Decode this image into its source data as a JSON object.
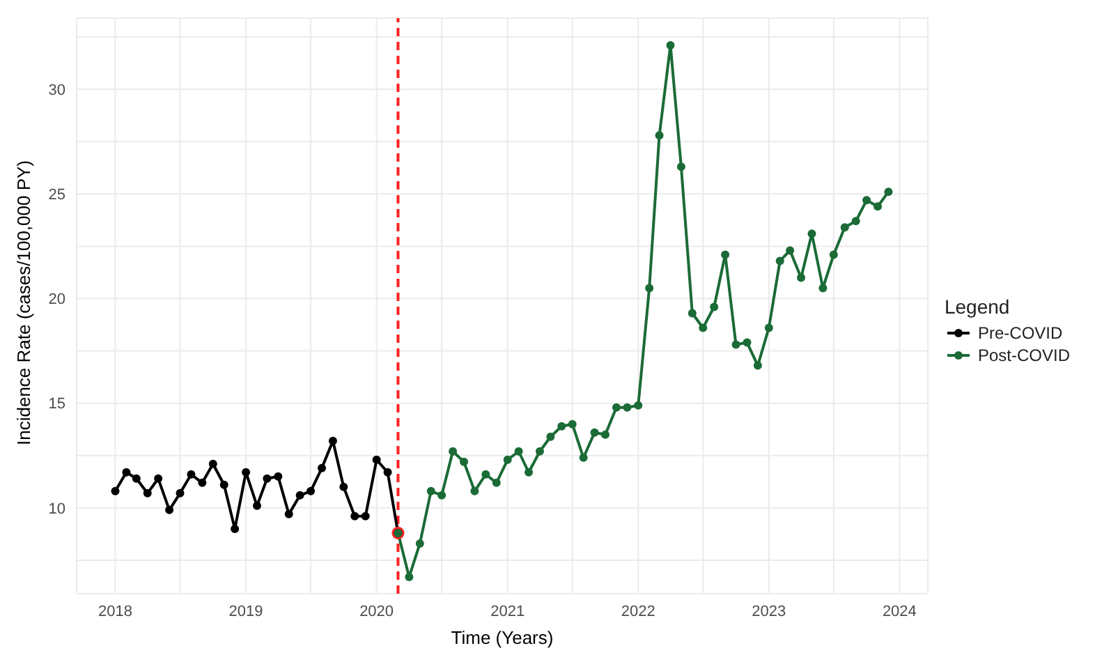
{
  "chart_data": {
    "type": "line",
    "xlabel": "Time (Years)",
    "ylabel": "Incidence Rate (cases/100,000 PY)",
    "legend_title": "Legend",
    "legend": "right",
    "grid": true,
    "marker": "circle",
    "line_style": "solid",
    "xlim": [
      "2017-09-15",
      "2024-03-20"
    ],
    "xticks": [
      {
        "value": "2018",
        "label": "2018"
      },
      {
        "value": "2018-07",
        "label": null
      },
      {
        "value": "2019",
        "label": "2019"
      },
      {
        "value": "2019-07",
        "label": null
      },
      {
        "value": "2020",
        "label": "2020"
      },
      {
        "value": "2020-07",
        "label": null
      },
      {
        "value": "2021",
        "label": "2021"
      },
      {
        "value": "2021-07",
        "label": null
      },
      {
        "value": "2022",
        "label": "2022"
      },
      {
        "value": "2022-07",
        "label": null
      },
      {
        "value": "2023",
        "label": "2023"
      },
      {
        "value": "2023-07",
        "label": null
      },
      {
        "value": "2024",
        "label": "2024"
      }
    ],
    "ylim": [
      5.9,
      33.4
    ],
    "yticks": [
      {
        "value": 7.5,
        "label": null
      },
      10,
      {
        "value": 12.5,
        "label": null
      },
      15,
      {
        "value": 17.5,
        "label": null
      },
      20,
      {
        "value": 22.5,
        "label": null
      },
      25,
      {
        "value": 27.5,
        "label": null
      },
      30,
      {
        "value": 32.5,
        "label": null
      }
    ],
    "ref_lines": [
      {
        "axis": "x",
        "value": "2020-03",
        "color": "#ff2020",
        "line_style": "dashed"
      }
    ],
    "series": [
      {
        "name": "Pre-COVID",
        "color": "#000000",
        "x": [
          "2018-01",
          "2018-02",
          "2018-03",
          "2018-04",
          "2018-05",
          "2018-06",
          "2018-07",
          "2018-08",
          "2018-09",
          "2018-10",
          "2018-11",
          "2018-12",
          "2019-01",
          "2019-02",
          "2019-03",
          "2019-04",
          "2019-05",
          "2019-06",
          "2019-07",
          "2019-08",
          "2019-09",
          "2019-10",
          "2019-11",
          "2019-12",
          "2020-01",
          "2020-02",
          "2020-03"
        ],
        "values": [
          10.8,
          11.7,
          11.4,
          10.7,
          11.4,
          9.9,
          10.7,
          11.6,
          11.2,
          12.1,
          11.1,
          9.0,
          11.7,
          10.1,
          11.4,
          11.5,
          9.7,
          10.6,
          10.8,
          11.9,
          13.2,
          11.0,
          9.6,
          9.6,
          12.3,
          11.7,
          8.8
        ]
      },
      {
        "name": "Post-COVID",
        "color": "#1b6b36",
        "x": [
          "2020-03",
          "2020-04",
          "2020-05",
          "2020-06",
          "2020-07",
          "2020-08",
          "2020-09",
          "2020-10",
          "2020-11",
          "2020-12",
          "2021-01",
          "2021-02",
          "2021-03",
          "2021-04",
          "2021-05",
          "2021-06",
          "2021-07",
          "2021-08",
          "2021-09",
          "2021-10",
          "2021-11",
          "2021-12",
          "2022-01",
          "2022-02",
          "2022-03",
          "2022-04",
          "2022-05",
          "2022-06",
          "2022-07",
          "2022-08",
          "2022-09",
          "2022-10",
          "2022-11",
          "2022-12",
          "2023-01",
          "2023-02",
          "2023-03",
          "2023-04",
          "2023-05",
          "2023-06",
          "2023-07",
          "2023-08",
          "2023-09",
          "2023-10",
          "2023-11",
          "2023-12"
        ],
        "values": [
          8.8,
          6.7,
          8.3,
          10.8,
          10.6,
          12.7,
          12.2,
          10.8,
          11.6,
          11.2,
          12.3,
          12.7,
          11.7,
          12.7,
          13.4,
          13.9,
          14.0,
          12.4,
          13.6,
          13.5,
          14.8,
          14.8,
          14.9,
          20.5,
          27.8,
          32.1,
          26.3,
          19.3,
          18.6,
          19.6,
          22.1,
          17.8,
          17.9,
          16.8,
          18.6,
          21.8,
          22.3,
          21.0,
          23.1,
          20.5,
          22.1,
          23.4,
          23.7,
          24.7,
          24.4,
          25.1
        ]
      },
      {
        "type": "scatter",
        "color": "#ff2020",
        "x": [
          "2020-03"
        ],
        "values": [
          8.8
        ]
      }
    ]
  }
}
